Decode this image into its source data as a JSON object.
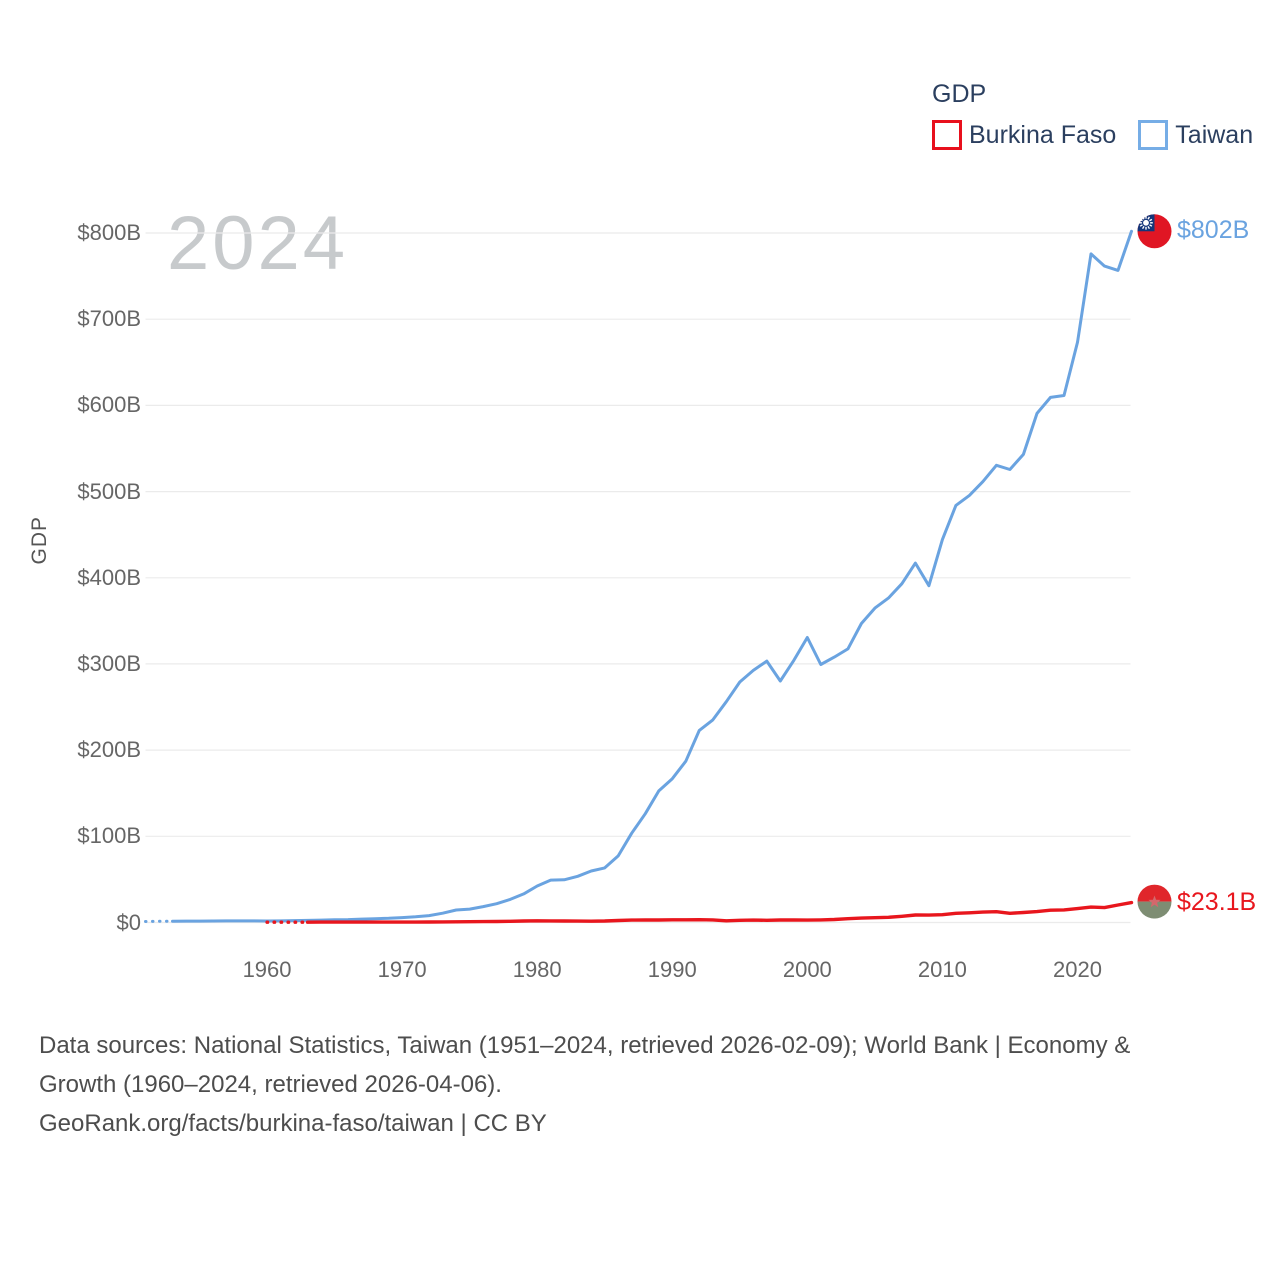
{
  "legend": {
    "title": "GDP",
    "items": [
      {
        "label": "Burkina Faso",
        "color": "#e8101d"
      },
      {
        "label": "Taiwan",
        "color": "#76ade6"
      }
    ]
  },
  "watermark_year": "2024",
  "y_axis_title": "GDP",
  "footer": {
    "line1": "Data sources: National Statistics, Taiwan (1951–2024, retrieved 2026-02-09); World Bank | Economy &",
    "line2": "Growth (1960–2024, retrieved 2026-04-06).",
    "line3": "GeoRank.org/facts/burkina-faso/taiwan | CC BY"
  },
  "chart_data": {
    "type": "line",
    "title": "GDP",
    "ylabel": "GDP",
    "xlabel": "",
    "grid": "horizontal",
    "legend_position": "top-right",
    "x_range": [
      1951,
      2024
    ],
    "y_range": [
      0,
      800
    ],
    "x_ticks": [
      1960,
      1970,
      1980,
      1990,
      2000,
      2010,
      2020
    ],
    "y_ticks": [
      {
        "value": 0,
        "label": "$0"
      },
      {
        "value": 100,
        "label": "$100B"
      },
      {
        "value": 200,
        "label": "$200B"
      },
      {
        "value": 300,
        "label": "$300B"
      },
      {
        "value": 400,
        "label": "$400B"
      },
      {
        "value": 500,
        "label": "$500B"
      },
      {
        "value": 600,
        "label": "$600B"
      },
      {
        "value": 700,
        "label": "$700B"
      },
      {
        "value": 800,
        "label": "$800B"
      }
    ],
    "unit": "billion USD",
    "series": [
      {
        "name": "Taiwan",
        "color": "#6aa3e0",
        "width": 3,
        "dash_years": 2,
        "flag": "taiwan",
        "end_label": "$802B",
        "start_year": 1951,
        "values": [
          1.2,
          1.4,
          1.5,
          1.6,
          1.6,
          1.7,
          1.8,
          1.9,
          1.9,
          1.7,
          1.9,
          2.2,
          2.4,
          2.8,
          3.1,
          3.4,
          3.9,
          4.4,
          4.9,
          5.7,
          6.6,
          8.0,
          10.8,
          14.5,
          15.5,
          18.5,
          21.8,
          26.8,
          33.2,
          42.3,
          49.2,
          49.6,
          53.6,
          59.8,
          63.4,
          77.3,
          103.6,
          126.2,
          152.7,
          166.8,
          187.1,
          222.9,
          235.1,
          256.2,
          279.1,
          292.5,
          303.3,
          280.2,
          304.1,
          330.7,
          299.3,
          307.9,
          317.4,
          346.9,
          364.8,
          376.4,
          393.1,
          417.0,
          390.8,
          444.3,
          484.0,
          495.6,
          511.6,
          530.5,
          525.6,
          543.1,
          590.7,
          609.2,
          611.4,
          673.2,
          775.8,
          761.6,
          756.6,
          802.0
        ]
      },
      {
        "name": "Burkina Faso",
        "color": "#e8161d",
        "width": 3.4,
        "dash_years": 3,
        "flag": "burkina-faso",
        "end_label": "$23.1B",
        "start_year": 1960,
        "values": [
          0.33,
          0.35,
          0.38,
          0.39,
          0.41,
          0.44,
          0.44,
          0.45,
          0.46,
          0.47,
          0.46,
          0.49,
          0.55,
          0.67,
          0.81,
          0.95,
          0.99,
          1.14,
          1.45,
          1.71,
          1.93,
          1.81,
          1.73,
          1.59,
          1.49,
          1.69,
          2.29,
          2.73,
          3.03,
          2.95,
          3.1,
          3.17,
          3.26,
          3.05,
          2.02,
          2.58,
          2.74,
          2.59,
          2.87,
          2.94,
          2.77,
          2.96,
          3.45,
          4.43,
          5.1,
          5.59,
          6.09,
          7.21,
          8.69,
          8.62,
          9.1,
          10.7,
          11.3,
          12.1,
          12.5,
          10.7,
          11.6,
          12.7,
          14.3,
          14.6,
          16.1,
          17.9,
          17.3,
          20.3,
          23.1
        ]
      }
    ],
    "flag_colors": {
      "taiwan": {
        "field": "#e01624",
        "canton": "#14367a",
        "sun": "#ffffff"
      },
      "burkina-faso": {
        "top": "#e0262b",
        "bottom": "#7e8d73",
        "star": "#d4686c"
      }
    }
  }
}
